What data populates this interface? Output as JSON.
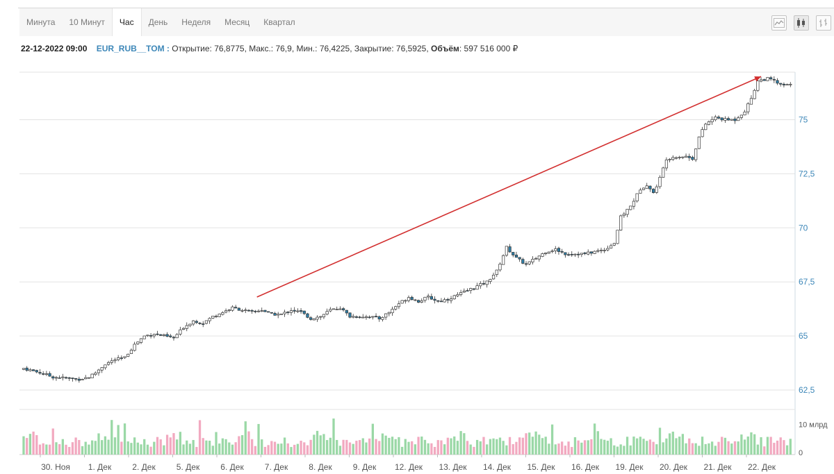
{
  "tabs": [
    {
      "label": "Минута",
      "active": false
    },
    {
      "label": "10 Минут",
      "active": false
    },
    {
      "label": "Час",
      "active": true
    },
    {
      "label": "День",
      "active": false
    },
    {
      "label": "Неделя",
      "active": false
    },
    {
      "label": "Месяц",
      "active": false
    },
    {
      "label": "Квартал",
      "active": false
    }
  ],
  "tools": [
    "line-chart-icon",
    "candlestick-chart-icon",
    "bar-chart-icon"
  ],
  "info": {
    "date": "22-12-2022 09:00",
    "ticker": "EUR_RUB__TOM :",
    "open_label": "Открытие:",
    "open": "76,8775",
    "high_label": "Макс.:",
    "high": "76,9",
    "low_label": "Мин.:",
    "low": "76,4225",
    "close_label": "Закрытие:",
    "close": "76,5925",
    "volume_label": "Объём",
    "volume": "597 516 000 ₽"
  },
  "colors": {
    "bull": "#ffffff",
    "bear": "#2f7ea6",
    "candle_stroke": "#333333",
    "axis_text": "#3d87b8",
    "trend": "#d22f2f",
    "vol_up": "#9ad8a6",
    "vol_down": "#f2a9c0",
    "grid": "#e3e3e3"
  },
  "chart_data": {
    "type": "candlestick",
    "y_ticks": [
      62.5,
      65,
      67.5,
      70,
      72.5,
      75
    ],
    "y_tick_labels": [
      "62,5",
      "65",
      "67,5",
      "70",
      "72,5",
      "75"
    ],
    "ylim": [
      61.6,
      77.2
    ],
    "x_labels": [
      "30. Ноя",
      "1. Дек",
      "2. Дек",
      "5. Дек",
      "6. Дек",
      "7. Дек",
      "8. Дек",
      "9. Дек",
      "12. Дек",
      "13. Дек",
      "14. Дек",
      "15. Дек",
      "16. Дек",
      "19. Дек",
      "20. Дек",
      "21. Дек",
      "22. Дек"
    ],
    "volume_ticks": [
      "10 млрд",
      "0"
    ],
    "volume_max": 14,
    "close_path": [
      [
        0,
        63.5
      ],
      [
        5,
        63.3
      ],
      [
        9,
        63.1
      ],
      [
        13,
        63.05
      ],
      [
        17,
        63.0
      ],
      [
        20,
        63.1
      ],
      [
        22,
        63.3
      ],
      [
        25,
        63.7
      ],
      [
        28,
        63.9
      ],
      [
        31,
        64.0
      ],
      [
        34,
        64.6
      ],
      [
        37,
        65.0
      ],
      [
        40,
        65.1
      ],
      [
        43,
        65.0
      ],
      [
        46,
        64.9
      ],
      [
        49,
        65.4
      ],
      [
        52,
        65.7
      ],
      [
        55,
        65.6
      ],
      [
        58,
        65.9
      ],
      [
        61,
        66.1
      ],
      [
        64,
        66.3
      ],
      [
        67,
        66.2
      ],
      [
        70,
        66.1
      ],
      [
        73,
        66.2
      ],
      [
        76,
        66.0
      ],
      [
        79,
        66.0
      ],
      [
        82,
        66.2
      ],
      [
        85,
        66.1
      ],
      [
        88,
        65.8
      ],
      [
        91,
        65.9
      ],
      [
        94,
        66.2
      ],
      [
        97,
        66.3
      ],
      [
        100,
        65.9
      ],
      [
        103,
        65.9
      ],
      [
        106,
        65.9
      ],
      [
        109,
        65.8
      ],
      [
        112,
        66.1
      ],
      [
        115,
        66.5
      ],
      [
        118,
        66.8
      ],
      [
        121,
        66.6
      ],
      [
        124,
        66.8
      ],
      [
        127,
        66.6
      ],
      [
        130,
        66.7
      ],
      [
        133,
        66.9
      ],
      [
        136,
        67.1
      ],
      [
        139,
        67.3
      ],
      [
        142,
        67.5
      ],
      [
        145,
        68.0
      ],
      [
        148,
        69.1
      ],
      [
        151,
        68.6
      ],
      [
        154,
        68.3
      ],
      [
        157,
        68.6
      ],
      [
        160,
        68.9
      ],
      [
        163,
        69.0
      ],
      [
        166,
        68.8
      ],
      [
        169,
        68.8
      ],
      [
        172,
        68.8
      ],
      [
        175,
        68.9
      ],
      [
        178,
        69.0
      ],
      [
        181,
        69.3
      ],
      [
        183,
        70.5
      ],
      [
        186,
        71.0
      ],
      [
        189,
        71.8
      ],
      [
        191,
        72.0
      ],
      [
        193,
        71.6
      ],
      [
        195,
        72.3
      ],
      [
        197,
        73.2
      ],
      [
        200,
        73.3
      ],
      [
        203,
        73.3
      ],
      [
        205,
        73.2
      ],
      [
        207,
        74.2
      ],
      [
        209,
        74.8
      ],
      [
        212,
        75.1
      ],
      [
        215,
        75.0
      ],
      [
        218,
        75.0
      ],
      [
        221,
        75.4
      ],
      [
        223,
        76.0
      ],
      [
        225,
        76.8
      ],
      [
        228,
        76.9
      ],
      [
        230,
        76.8
      ],
      [
        232,
        76.6
      ]
    ],
    "trend_line": {
      "from": {
        "x": 71.5,
        "y": 66.8
      },
      "to": {
        "x": 226,
        "y": 77.0
      }
    }
  }
}
